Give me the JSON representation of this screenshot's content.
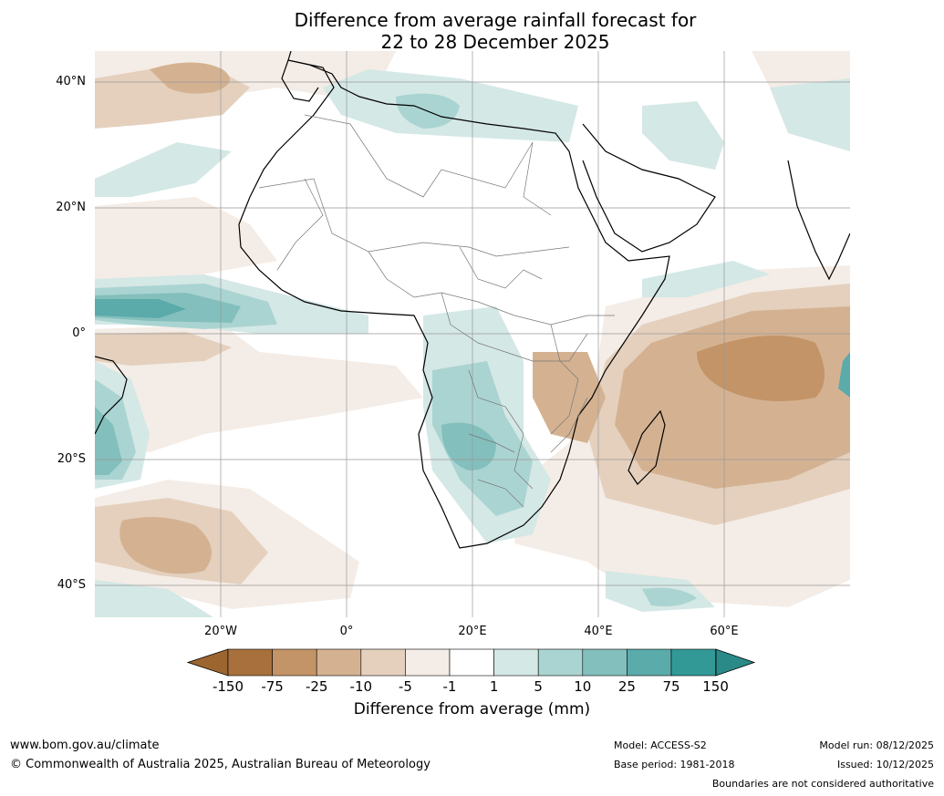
{
  "title": {
    "line1": "Difference from average rainfall forecast for",
    "line2": "22 to 28 December 2025"
  },
  "map": {
    "lat_labels": [
      "40°N",
      "20°N",
      "0°",
      "20°S",
      "40°S"
    ],
    "lon_labels": [
      "20°W",
      "0°",
      "20°E",
      "40°E",
      "60°E"
    ],
    "lat_values": [
      40,
      20,
      0,
      -20,
      -40
    ],
    "lon_values": [
      -20,
      0,
      20,
      40,
      60
    ],
    "extent": {
      "lon_min": -40,
      "lon_max": 80,
      "lat_min": -45,
      "lat_max": 45
    }
  },
  "colorbar": {
    "ticks": [
      "-150",
      "-75",
      "-25",
      "-10",
      "-5",
      "-1",
      "1",
      "5",
      "10",
      "25",
      "75",
      "150"
    ],
    "colors": [
      "#a8703c",
      "#c39467",
      "#d4b291",
      "#e4d0bd",
      "#f4ece6",
      "#ffffff",
      "#d4e8e6",
      "#aad4d1",
      "#83bfbc",
      "#5aabaa",
      "#329997"
    ],
    "under_color": "#9c6530",
    "over_color": "#2a8a88",
    "label": "Difference from average (mm)"
  },
  "footer": {
    "website": "www.bom.gov.au/climate",
    "copyright": "© Commonwealth of Australia 2025, Australian Bureau of Meteorology",
    "model": "Model: ACCESS-S2",
    "base_period": "Base period: 1981-2018",
    "model_run": "Model run: 08/12/2025",
    "issued": "Issued: 10/12/2025",
    "disclaimer": "Boundaries are not considered authoritative"
  }
}
